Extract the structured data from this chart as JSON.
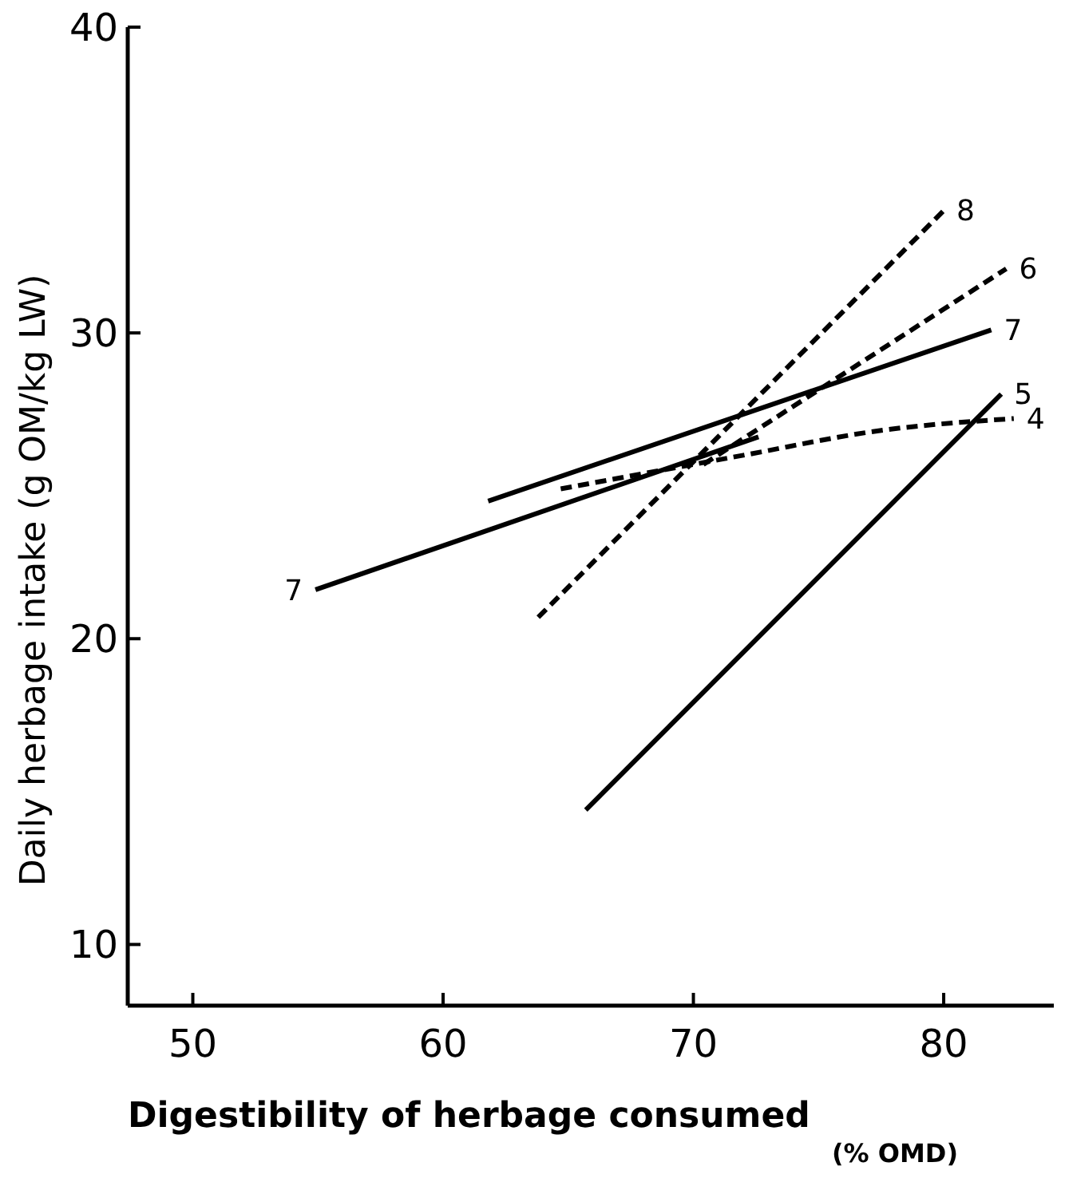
{
  "chart_data": {
    "type": "line",
    "xlabel": "Digestibility of herbage consumed (% OMD)",
    "ylabel": "Daily herbage intake (g OM/kg LW)",
    "xlim": [
      47.4,
      84.4
    ],
    "ylim": [
      8,
      40
    ],
    "xticks": [
      50,
      60,
      70,
      80
    ],
    "yticks": [
      10,
      20,
      30,
      40
    ],
    "grid": false,
    "marker": "none",
    "series": [
      {
        "color": "#000000",
        "line_style": "solid",
        "x": [
          54.9,
          72.6
        ],
        "values": [
          21.6,
          26.6
        ]
      },
      {
        "color": "#000000",
        "line_style": "solid",
        "x": [
          61.8,
          81.9
        ],
        "values": [
          24.5,
          30.1
        ]
      },
      {
        "color": "#000000",
        "line_style": "solid",
        "x": [
          65.7,
          82.3
        ],
        "values": [
          14.4,
          28.0
        ]
      },
      {
        "color": "#000000",
        "line_style": "dashed",
        "x": [
          63.8,
          80.0
        ],
        "values": [
          20.7,
          34.0
        ]
      },
      {
        "color": "#000000",
        "line_style": "dashed",
        "x": [
          70.4,
          82.5
        ],
        "values": [
          25.7,
          32.1
        ]
      },
      {
        "color": "#000000",
        "line_style": "dashed",
        "x": [
          64.7,
          72.0,
          77.4,
          82.8
        ],
        "values": [
          24.9,
          26.0,
          26.8,
          27.2
        ]
      }
    ],
    "annotations": [
      {
        "text": "7",
        "x": 54.9,
        "y": 21.6
      },
      {
        "text": "7",
        "x": 81.9,
        "y": 30.1
      },
      {
        "text": "5",
        "x": 82.3,
        "y": 28.0
      },
      {
        "text": "8",
        "x": 80.0,
        "y": 34.0
      },
      {
        "text": "6",
        "x": 82.5,
        "y": 32.1
      },
      {
        "text": "4",
        "x": 82.8,
        "y": 27.2
      }
    ]
  }
}
